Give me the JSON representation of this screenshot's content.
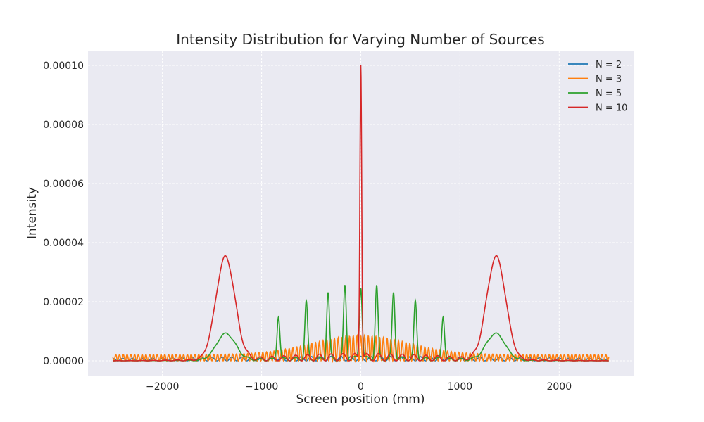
{
  "chart_data": {
    "type": "line",
    "title": "Intensity Distribution for Varying Number of Sources",
    "xlabel": "Screen position (mm)",
    "ylabel": "Intensity",
    "xlim": [
      -2750,
      2750
    ],
    "ylim": [
      -5e-06,
      0.000105
    ],
    "xticks": [
      -2000,
      -1000,
      0,
      1000,
      2000
    ],
    "xtick_labels": [
      "−2000",
      "−1000",
      "0",
      "1000",
      "2000"
    ],
    "yticks": [
      0,
      2e-05,
      4e-05,
      6e-05,
      8e-05,
      0.0001
    ],
    "ytick_labels": [
      "0.00000",
      "0.00002",
      "0.00004",
      "0.00006",
      "0.00008",
      "0.00010"
    ],
    "grid": true,
    "legend_position": "top-right",
    "x_range": [
      -2500,
      2500
    ],
    "series": [
      {
        "name": "N = 2",
        "color": "#1f77b4",
        "envelope_peak": 1.5e-06,
        "envelope_width": 1800,
        "fringe_period": 100
      },
      {
        "name": "N = 3",
        "color": "#ff7f0e",
        "envelope_peak": 8.5e-06,
        "envelope_width": 480,
        "fringe_period": 38
      },
      {
        "name": "N = 5",
        "color": "#2ca02c",
        "peaks": [
          [
            0,
            2.45e-05
          ],
          [
            160,
            2.45e-05
          ],
          [
            -160,
            2.45e-05
          ],
          [
            330,
            2.25e-05
          ],
          [
            -330,
            2.25e-05
          ],
          [
            550,
            1.93e-05
          ],
          [
            -550,
            1.93e-05
          ],
          [
            830,
            1.48e-05
          ],
          [
            -830,
            1.48e-05
          ],
          [
            1360,
            9e-06
          ],
          [
            -1360,
            9e-06
          ]
        ]
      },
      {
        "name": "N = 10",
        "color": "#d62728",
        "peaks": [
          [
            0,
            0.0001
          ],
          [
            1365,
            3.48e-05
          ],
          [
            -1365,
            3.48e-05
          ]
        ]
      }
    ]
  }
}
